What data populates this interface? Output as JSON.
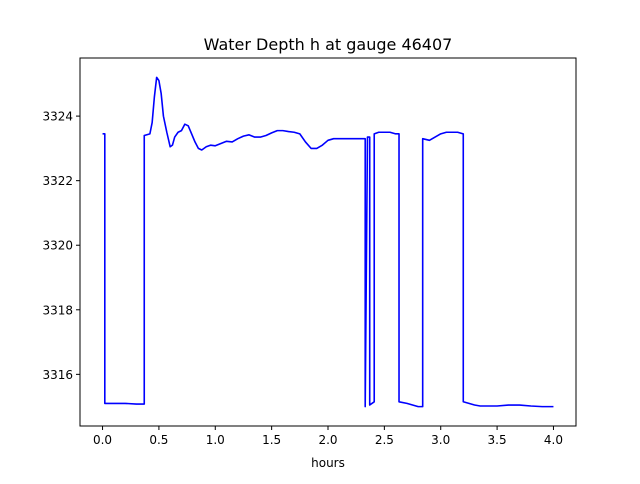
{
  "chart_data": {
    "type": "line",
    "title": "Water Depth h at gauge 46407",
    "xlabel": "hours",
    "ylabel": "",
    "xlim": [
      -0.2,
      4.2
    ],
    "ylim": [
      3314.4,
      3325.8
    ],
    "xticks": [
      0.0,
      0.5,
      1.0,
      1.5,
      2.0,
      2.5,
      3.0,
      3.5,
      4.0
    ],
    "xtick_labels": [
      "0.0",
      "0.5",
      "1.0",
      "1.5",
      "2.0",
      "2.5",
      "3.0",
      "3.5",
      "4.0"
    ],
    "yticks": [
      3316,
      3318,
      3320,
      3322,
      3324
    ],
    "ytick_labels": [
      "3316",
      "3318",
      "3320",
      "3322",
      "3324"
    ],
    "grid": false,
    "series": [
      {
        "color": "#0000ff",
        "x": [
          0.0,
          0.02,
          0.02,
          0.1,
          0.2,
          0.3,
          0.37,
          0.37,
          0.42,
          0.44,
          0.46,
          0.48,
          0.5,
          0.52,
          0.54,
          0.57,
          0.6,
          0.62,
          0.64,
          0.67,
          0.7,
          0.73,
          0.76,
          0.79,
          0.82,
          0.85,
          0.88,
          0.92,
          0.96,
          1.0,
          1.05,
          1.1,
          1.15,
          1.2,
          1.25,
          1.3,
          1.35,
          1.4,
          1.45,
          1.5,
          1.55,
          1.6,
          1.65,
          1.7,
          1.75,
          1.8,
          1.85,
          1.9,
          1.95,
          2.0,
          2.05,
          2.1,
          2.15,
          2.2,
          2.25,
          2.3,
          2.33,
          2.33,
          2.35,
          2.37,
          2.37,
          2.41,
          2.41,
          2.45,
          2.5,
          2.55,
          2.6,
          2.63,
          2.63,
          2.7,
          2.75,
          2.8,
          2.84,
          2.84,
          2.9,
          2.95,
          3.0,
          3.05,
          3.1,
          3.15,
          3.2,
          3.2,
          3.25,
          3.3,
          3.35,
          3.4,
          3.5,
          3.6,
          3.7,
          3.8,
          3.9,
          4.0
        ],
        "y": [
          3323.45,
          3323.45,
          3315.1,
          3315.1,
          3315.1,
          3315.08,
          3315.08,
          3323.4,
          3323.45,
          3323.8,
          3324.6,
          3325.2,
          3325.1,
          3324.7,
          3324.0,
          3323.5,
          3323.05,
          3323.1,
          3323.35,
          3323.5,
          3323.55,
          3323.75,
          3323.7,
          3323.45,
          3323.2,
          3323.0,
          3322.95,
          3323.05,
          3323.1,
          3323.08,
          3323.15,
          3323.22,
          3323.2,
          3323.3,
          3323.38,
          3323.42,
          3323.35,
          3323.35,
          3323.4,
          3323.48,
          3323.55,
          3323.55,
          3323.52,
          3323.5,
          3323.45,
          3323.2,
          3323.0,
          3323.0,
          3323.1,
          3323.25,
          3323.3,
          3323.3,
          3323.3,
          3323.3,
          3323.3,
          3323.3,
          3323.3,
          3315.0,
          3323.35,
          3323.35,
          3315.05,
          3315.15,
          3323.45,
          3323.5,
          3323.5,
          3323.5,
          3323.45,
          3323.45,
          3315.15,
          3315.1,
          3315.05,
          3315.0,
          3315.0,
          3323.3,
          3323.25,
          3323.35,
          3323.45,
          3323.5,
          3323.5,
          3323.5,
          3323.45,
          3315.15,
          3315.1,
          3315.05,
          3315.02,
          3315.02,
          3315.02,
          3315.05,
          3315.05,
          3315.02,
          3315.0,
          3315.0
        ]
      }
    ]
  }
}
